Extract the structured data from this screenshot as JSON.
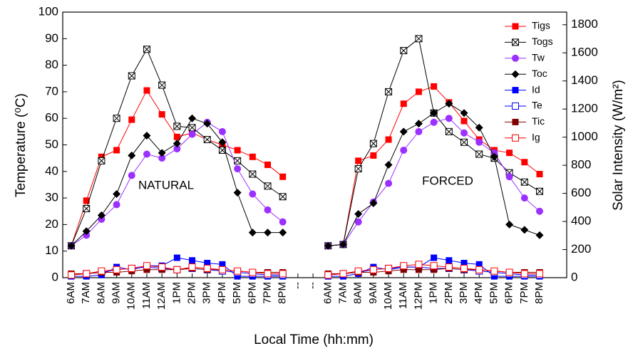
{
  "chart_data": {
    "type": "line",
    "categories": [
      "6AM",
      "7AM",
      "8AM",
      "9AM",
      "10AM",
      "11AM",
      "12AM",
      "1PM",
      "2PM",
      "3PM",
      "4PM",
      "5PM",
      "6PM",
      "7PM",
      "8PM",
      "--",
      "--",
      "6AM",
      "7AM",
      "8AM",
      "9AM",
      "10AM",
      "11AM",
      "12PM",
      "1PM",
      "2PM",
      "3PM",
      "4PM",
      "5PM",
      "6PM",
      "7PM",
      "8PM"
    ],
    "x_label": "Local Time (hh:mm)",
    "y_label": "Temperature (⁰C)",
    "y2_label": "Solar Intensity (W/m²)",
    "ylim": [
      0,
      100
    ],
    "yticks": [
      0,
      10,
      20,
      30,
      40,
      50,
      60,
      70,
      80,
      90,
      100
    ],
    "y2lim": [
      0,
      1890
    ],
    "y2ticks": [
      0,
      200,
      400,
      600,
      800,
      1000,
      1200,
      1400,
      1600,
      1800
    ],
    "legend": "upper right",
    "annotations": [
      "NATURAL",
      "FORCED"
    ],
    "series": [
      {
        "name": "Tigs",
        "color": "#ff0000",
        "marker": "square",
        "values": [
          12,
          29,
          45.5,
          48,
          59.5,
          70.5,
          61.5,
          53,
          54.5,
          52,
          50,
          48,
          45.5,
          42.5,
          38,
          null,
          null,
          12,
          12.5,
          44,
          46,
          52,
          65.5,
          70,
          72,
          66,
          59,
          52,
          48,
          47,
          43.5,
          39
        ]
      },
      {
        "name": "Togs",
        "color": "#000000",
        "marker": "square-x",
        "values": [
          12,
          26,
          44,
          60,
          76,
          86,
          72.5,
          57,
          56.5,
          52,
          48,
          44,
          39,
          34.5,
          30.5,
          null,
          null,
          12,
          12.5,
          41,
          50.5,
          70,
          85.5,
          90,
          62,
          55,
          51,
          46.5,
          45,
          39.5,
          36,
          32.5
        ]
      },
      {
        "name": "Tw",
        "color": "#9b30ff",
        "marker": "circle",
        "values": [
          12,
          16,
          22,
          27.5,
          38.5,
          46.5,
          45,
          48.5,
          54,
          58.5,
          55,
          41,
          31.5,
          25.5,
          21,
          null,
          null,
          12,
          12.5,
          21,
          28.5,
          35.5,
          48,
          55,
          58.5,
          60,
          54.5,
          51,
          47,
          38,
          30,
          25
        ]
      },
      {
        "name": "Toc",
        "color": "#000000",
        "marker": "diamond",
        "values": [
          12,
          17.5,
          23.5,
          31.5,
          46,
          53.5,
          47,
          50.5,
          60,
          58,
          51,
          32,
          17,
          17,
          17,
          null,
          null,
          12,
          12.5,
          24,
          28,
          42.5,
          55,
          58,
          62,
          65.5,
          62,
          56.5,
          45.5,
          20,
          18,
          16
        ]
      },
      {
        "name": "Id",
        "color": "#0000ff",
        "marker": "square",
        "values": [
          0.5,
          0.5,
          1,
          4,
          3,
          4.5,
          4.5,
          7.5,
          6.5,
          5.5,
          5,
          0.5,
          0.5,
          0.5,
          0.5,
          null,
          null,
          0.5,
          0.5,
          1.5,
          4,
          3,
          4,
          4,
          7.5,
          6.5,
          5.5,
          5,
          0.5,
          0.5,
          0.5,
          0.5
        ]
      },
      {
        "name": "Te",
        "color": "#0000ff",
        "marker": "square-open",
        "values": [
          1,
          1.5,
          2,
          3,
          3.5,
          4,
          3.5,
          3,
          3.5,
          3,
          2.5,
          2,
          1.5,
          1,
          1,
          null,
          null,
          1,
          1.5,
          2,
          3,
          3.5,
          4,
          4,
          3.5,
          3.5,
          3,
          2.5,
          2,
          1.5,
          1,
          1
        ]
      },
      {
        "name": "Tic",
        "color": "#800000",
        "marker": "square",
        "values": [
          1.5,
          1.5,
          2,
          2,
          2.5,
          3,
          3,
          3,
          3.5,
          3,
          3,
          2.5,
          2,
          2,
          2,
          null,
          null,
          1.5,
          1.5,
          2,
          2,
          2.5,
          3,
          3,
          3,
          3.5,
          3,
          3,
          2.5,
          2,
          2,
          2
        ]
      },
      {
        "name": "Ig",
        "color": "#ff0000",
        "marker": "square-open",
        "values": [
          1,
          1.5,
          2.5,
          3,
          3.5,
          4.5,
          4,
          3,
          4,
          3.5,
          3,
          2.5,
          2,
          1.5,
          1.5,
          null,
          null,
          1,
          1.5,
          2.5,
          3,
          3.5,
          4.5,
          5,
          4.5,
          4,
          3.5,
          3,
          2.5,
          2,
          1.5,
          1.5
        ]
      }
    ]
  }
}
